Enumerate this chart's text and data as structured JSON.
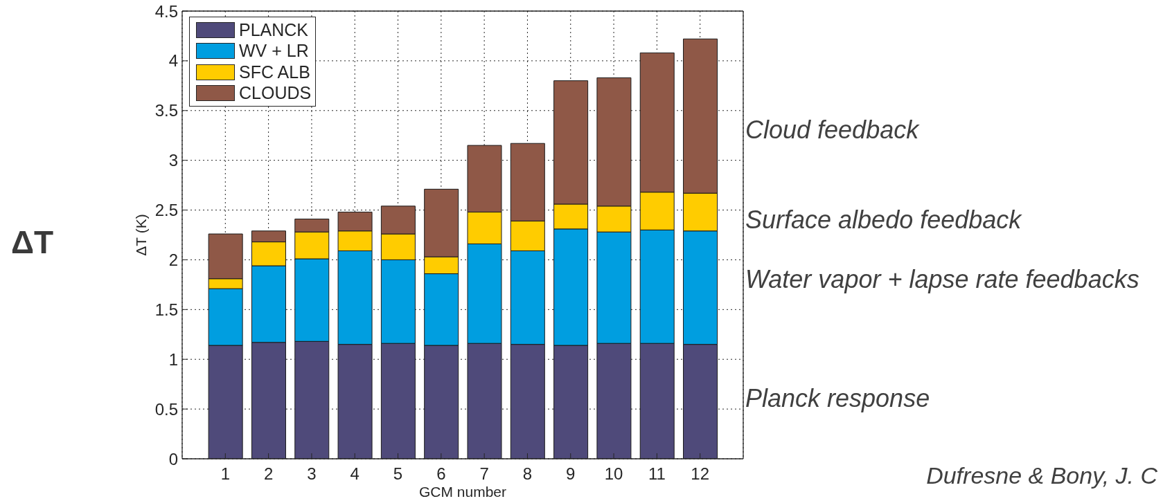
{
  "chart_data": {
    "type": "bar",
    "stacked": true,
    "xlabel": "GCM number",
    "ylabel": "ΔT (K)",
    "x": [
      1,
      2,
      3,
      4,
      5,
      6,
      7,
      8,
      9,
      10,
      11,
      12
    ],
    "xlim": [
      0,
      13
    ],
    "xticks": [
      1,
      2,
      3,
      4,
      5,
      6,
      7,
      8,
      9,
      10,
      11,
      12
    ],
    "series": [
      {
        "name": "PLANCK",
        "color": "#4f4a7a",
        "values": [
          1.14,
          1.17,
          1.18,
          1.15,
          1.16,
          1.14,
          1.16,
          1.15,
          1.14,
          1.16,
          1.16,
          1.15
        ]
      },
      {
        "name": "WV + LR",
        "color": "#009ee0",
        "values": [
          0.57,
          0.77,
          0.83,
          0.94,
          0.84,
          0.72,
          1.0,
          0.94,
          1.17,
          1.12,
          1.14,
          1.14
        ]
      },
      {
        "name": "SFC ALB",
        "color": "#ffcc00",
        "values": [
          0.1,
          0.24,
          0.27,
          0.2,
          0.26,
          0.17,
          0.32,
          0.3,
          0.25,
          0.26,
          0.38,
          0.38
        ]
      },
      {
        "name": "CLOUDS",
        "color": "#8f5847",
        "values": [
          0.45,
          0.11,
          0.13,
          0.19,
          0.28,
          0.68,
          0.67,
          0.78,
          1.24,
          1.29,
          1.4,
          1.55
        ]
      }
    ],
    "ylim": [
      0,
      4.5
    ],
    "yticks": [
      0,
      0.5,
      1,
      1.5,
      2,
      2.5,
      3,
      3.5,
      4,
      4.5
    ],
    "grid": true,
    "legend": "top left",
    "annotations": [
      "Cloud feedback",
      "Surface albedo feedback",
      "Water vapor + lapse rate feedbacks",
      "Planck response",
      "ΔT",
      "Dufresne & Bony, J. C"
    ]
  }
}
